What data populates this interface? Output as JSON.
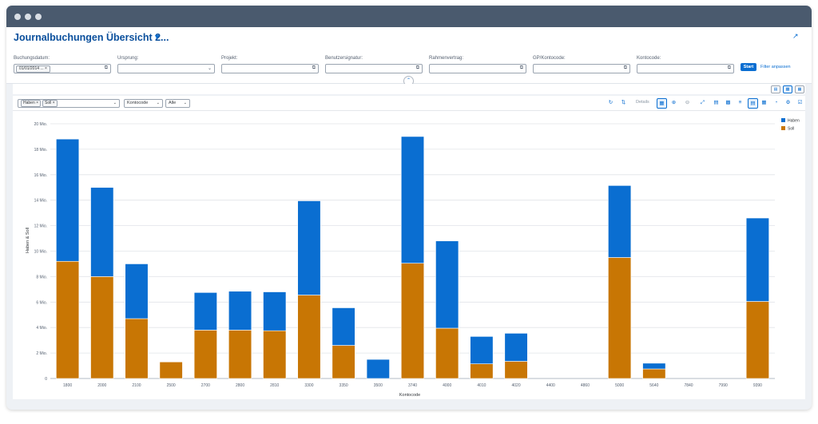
{
  "app": {
    "title": "Journalbuchungen Übersicht 2..."
  },
  "filters": [
    {
      "label": "Buchungsdatum:",
      "value": "01/01/2014 ...",
      "token": true
    },
    {
      "label": "Ursprung:",
      "value": "",
      "dropdown": true
    },
    {
      "label": "Projekt:",
      "value": ""
    },
    {
      "label": "Benutzersignatur:",
      "value": ""
    },
    {
      "label": "Rahmenvertrag:",
      "value": ""
    },
    {
      "label": "GP/Kontocode:",
      "value": ""
    },
    {
      "label": "Kontocode:",
      "value": ""
    }
  ],
  "actions": {
    "start": "Start",
    "filter": "Filter anpassen"
  },
  "toolbar": {
    "measure_tokens": [
      "Haben",
      "Soll"
    ],
    "dimension": "Kontocode",
    "scope": "Alle",
    "details": "Details"
  },
  "icons": {
    "title_chevron": "chevron-down-icon",
    "share": "share-icon",
    "value_help": "value-help-icon",
    "collapse": "collapse-up-icon",
    "view_switch": [
      "table-view-icon",
      "chart-view-icon",
      "chart-table-view-icon"
    ],
    "chart_tools": [
      "drill-icon",
      "sort-icon",
      "legend-icon",
      "zoom-in-icon",
      "zoom-out-icon",
      "fullscreen-icon",
      "bar-chart-icon",
      "column-chart-icon",
      "bar-horizontal-icon",
      "stacked-bar-icon",
      "stacked-column-icon",
      "donut-icon",
      "settings-icon",
      "checklist-icon"
    ]
  },
  "colors": {
    "accent": "#0a6ed1",
    "haben": "#0a6ed1",
    "soll": "#c87604",
    "titlebar": "#4a5a6e"
  },
  "chart_data": {
    "type": "bar",
    "stacked": true,
    "categories": [
      "1800",
      "2000",
      "2100",
      "2500",
      "2700",
      "2800",
      "2810",
      "3300",
      "3350",
      "3500",
      "3740",
      "4000",
      "4010",
      "4020",
      "4400",
      "4860",
      "5000",
      "5640",
      "7840",
      "7990",
      "9390"
    ],
    "series": [
      {
        "name": "Soll",
        "values": [
          9.2,
          8.0,
          4.7,
          1.3,
          3.8,
          3.8,
          3.75,
          6.55,
          2.6,
          0,
          9.05,
          3.95,
          1.15,
          1.35,
          0,
          0,
          9.5,
          0.75,
          0,
          0,
          6.05
        ]
      },
      {
        "name": "Haben",
        "values": [
          9.6,
          7.0,
          4.3,
          0,
          2.95,
          3.05,
          3.05,
          7.4,
          2.95,
          1.5,
          9.95,
          6.85,
          2.15,
          2.2,
          0,
          0,
          5.65,
          0.45,
          0,
          0,
          6.55
        ]
      }
    ],
    "legend": [
      "Haben",
      "Soll"
    ],
    "legend_position": "top-right",
    "ylabel": "Haben & Soll",
    "xlabel": "Kontocode",
    "yticks": [
      "0",
      "2 Mio.",
      "4 Mio.",
      "6 Mio.",
      "8 Mio.",
      "10 Mio.",
      "12 Mio.",
      "14 Mio.",
      "16 Mio.",
      "18 Mio.",
      "20 Mio."
    ],
    "ylim": [
      0,
      20
    ],
    "grid": true
  }
}
